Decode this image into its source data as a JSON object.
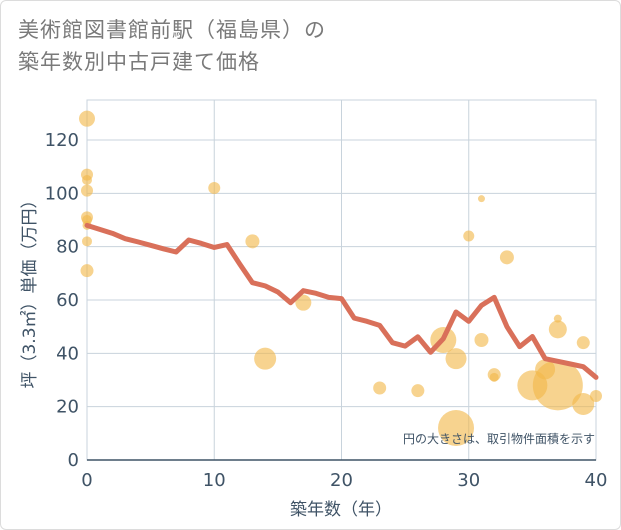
{
  "title_line1": "美術館図書館前駅（福島県）の",
  "title_line2": "築年数別中古戸建て価格",
  "chart_data": {
    "type": "scatter",
    "xlabel": "築年数（年）",
    "ylabel": "坪（3.3㎡）単価（万円）",
    "xlim": [
      0,
      40
    ],
    "ylim": [
      0,
      135
    ],
    "xticks": [
      0,
      10,
      20,
      30,
      40
    ],
    "yticks": [
      0,
      20,
      40,
      60,
      80,
      100,
      120
    ],
    "grid": true,
    "note": "円の大きさは、取引物件面積を示す",
    "colors": {
      "bubble": "#f2b84b",
      "line": "#d9705a"
    },
    "scatter": [
      {
        "x": 0,
        "y": 128,
        "size": 16
      },
      {
        "x": 0,
        "y": 107,
        "size": 12
      },
      {
        "x": 0,
        "y": 105,
        "size": 10
      },
      {
        "x": 0,
        "y": 101,
        "size": 12
      },
      {
        "x": 0,
        "y": 91,
        "size": 12
      },
      {
        "x": 0,
        "y": 90,
        "size": 10
      },
      {
        "x": 0,
        "y": 88,
        "size": 9
      },
      {
        "x": 0,
        "y": 82,
        "size": 10
      },
      {
        "x": 0,
        "y": 71,
        "size": 13
      },
      {
        "x": 10,
        "y": 102,
        "size": 12
      },
      {
        "x": 13,
        "y": 82,
        "size": 14
      },
      {
        "x": 14,
        "y": 38,
        "size": 22
      },
      {
        "x": 17,
        "y": 59,
        "size": 16
      },
      {
        "x": 23,
        "y": 27,
        "size": 13
      },
      {
        "x": 26,
        "y": 26,
        "size": 13
      },
      {
        "x": 28,
        "y": 45,
        "size": 26
      },
      {
        "x": 29,
        "y": 38,
        "size": 21
      },
      {
        "x": 29,
        "y": 12,
        "size": 36
      },
      {
        "x": 30,
        "y": 84,
        "size": 11
      },
      {
        "x": 31,
        "y": 98,
        "size": 7
      },
      {
        "x": 31,
        "y": 45,
        "size": 14
      },
      {
        "x": 32,
        "y": 31,
        "size": 9
      },
      {
        "x": 32,
        "y": 32,
        "size": 13
      },
      {
        "x": 33,
        "y": 76,
        "size": 14
      },
      {
        "x": 35,
        "y": 28,
        "size": 30
      },
      {
        "x": 36,
        "y": 34,
        "size": 20
      },
      {
        "x": 37,
        "y": 28,
        "size": 50
      },
      {
        "x": 37,
        "y": 53,
        "size": 8
      },
      {
        "x": 37,
        "y": 49,
        "size": 18
      },
      {
        "x": 39,
        "y": 44,
        "size": 13
      },
      {
        "x": 39,
        "y": 21,
        "size": 22
      },
      {
        "x": 40,
        "y": 24,
        "size": 12
      }
    ],
    "line": {
      "x": [
        0,
        1,
        2,
        3,
        4,
        5,
        6,
        7,
        8,
        9,
        10,
        11,
        12,
        13,
        14,
        15,
        16,
        17,
        18,
        19,
        20,
        21,
        22,
        23,
        24,
        25,
        26,
        27,
        28,
        29,
        30,
        31,
        32,
        33,
        34,
        35,
        36,
        37,
        38,
        39,
        40
      ],
      "y": [
        88,
        86.5,
        85,
        83,
        81.8,
        80.5,
        79.2,
        78,
        82.5,
        81.2,
        79.7,
        80.8,
        73.5,
        66.5,
        65.3,
        63,
        59,
        63.5,
        62.5,
        61,
        60.5,
        53.2,
        52,
        50.5,
        44,
        42.7,
        46.2,
        40.4,
        45.5,
        55.5,
        52,
        58,
        61,
        50,
        42.5,
        46.3,
        38,
        37,
        36,
        35,
        31
      ]
    }
  }
}
